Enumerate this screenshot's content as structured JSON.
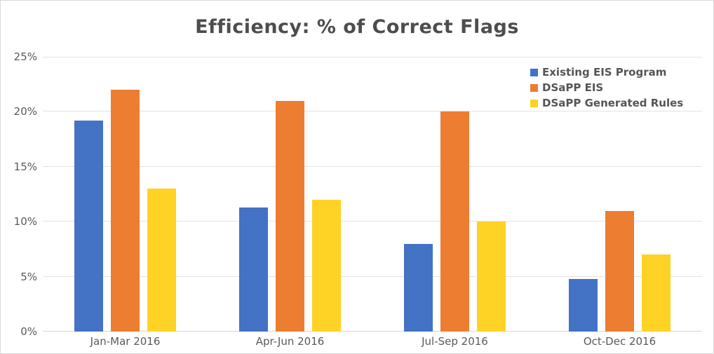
{
  "chart_data": {
    "type": "bar",
    "title": "Efficiency: % of Correct Flags",
    "categories": [
      "Jan-Mar 2016",
      "Apr-Jun 2016",
      "Jul-Sep 2016",
      "Oct-Dec 2016"
    ],
    "series": [
      {
        "name": "Existing EIS Program",
        "color": "#4472C4",
        "values": [
          19.2,
          11.3,
          8,
          4.8
        ]
      },
      {
        "name": "DSaPP EIS",
        "color": "#ED7D31",
        "values": [
          22,
          21,
          20,
          11
        ]
      },
      {
        "name": "DSaPP Generated Rules",
        "color": "#FFD226",
        "values": [
          13,
          12,
          10,
          7
        ]
      }
    ],
    "xlabel": "",
    "ylabel": "",
    "ylim": [
      0,
      25
    ],
    "yticks": [
      0,
      5,
      10,
      15,
      20,
      25
    ],
    "ytick_suffix": "%",
    "grid": true,
    "legend_position": "top-right"
  },
  "colors": {
    "title_text": "#4d4d4d",
    "axis_text": "#5a5a5a",
    "legend_text": "#555555",
    "gridline": "#e3e3e3",
    "baseline": "#d6d6d6",
    "border": "#d9d9d9",
    "background": "#ffffff"
  }
}
